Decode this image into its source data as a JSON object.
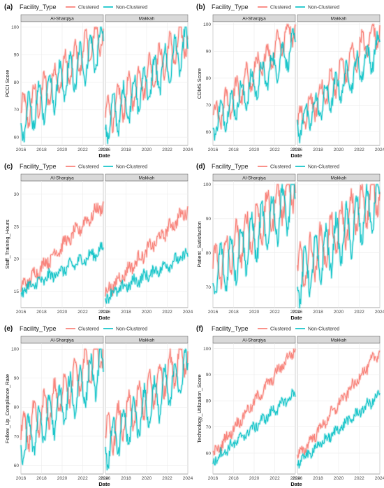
{
  "legend": {
    "title": "Facility_Type",
    "clustered_label": "Clustered",
    "non_clustered_label": "Non-Clustered"
  },
  "colors": {
    "clustered": "#f8766d",
    "non_clustered": "#00bfc4",
    "strip_bg": "#d9d9d9",
    "grid": "#ebebeb"
  },
  "facets": [
    "Al-Sharqiya",
    "Makkah"
  ],
  "chart_data": [
    {
      "panel": "(a)",
      "type": "line",
      "ylabel": "PCCI Score",
      "xlabel": "Date",
      "xlim": [
        2016,
        2024
      ],
      "xticks": [
        "2016",
        "2018",
        "2020",
        "2022",
        "2024"
      ],
      "ylim": [
        57,
        102
      ],
      "yticks": [
        60,
        70,
        80,
        90,
        100
      ],
      "series": [
        {
          "name": "Clustered",
          "start": 68,
          "end": 98,
          "amp": 6,
          "noise": 2.5,
          "cap": 100
        },
        {
          "name": "Non-Clustered",
          "start": 66,
          "end": 94,
          "amp": 7,
          "noise": 2.5,
          "cap": 100
        }
      ]
    },
    {
      "panel": "(b)",
      "type": "line",
      "ylabel": "CDMS Score",
      "xlabel": "Date",
      "xlim": [
        2016,
        2024
      ],
      "xticks": [
        "2016",
        "2018",
        "2020",
        "2022",
        "2024"
      ],
      "ylim": [
        55,
        101
      ],
      "yticks": [
        60,
        70,
        80,
        90,
        100
      ],
      "series": [
        {
          "name": "Clustered",
          "start": 64,
          "end": 100,
          "amp": 5,
          "noise": 2.5,
          "cap": 100
        },
        {
          "name": "Non-Clustered",
          "start": 63,
          "end": 92,
          "amp": 5,
          "noise": 2.5,
          "cap": 100
        }
      ]
    },
    {
      "panel": "(c)",
      "type": "line",
      "ylabel": "Staff_Training_Hours",
      "xlabel": "Date",
      "xlim": [
        2016,
        2024
      ],
      "xticks": [
        "2016",
        "2018",
        "2020",
        "2022",
        "2024"
      ],
      "ylim": [
        12.5,
        32
      ],
      "yticks": [
        15,
        20,
        25,
        30
      ],
      "series": [
        {
          "name": "Clustered",
          "start": 15.5,
          "end": 28.5,
          "amp": 0.6,
          "noise": 0.9,
          "cap": 40
        },
        {
          "name": "Non-Clustered",
          "start": 15,
          "end": 21.5,
          "amp": 0.5,
          "noise": 0.8,
          "cap": 40
        }
      ]
    },
    {
      "panel": "(d)",
      "type": "line",
      "ylabel": "Patient_Satisfaction",
      "xlabel": "Date",
      "xlim": [
        2016,
        2024
      ],
      "xticks": [
        "2016",
        "2018",
        "2020",
        "2022",
        "2024"
      ],
      "ylim": [
        64,
        101
      ],
      "yticks": [
        70,
        80,
        90,
        100
      ],
      "series": [
        {
          "name": "Clustered",
          "start": 75,
          "end": 100,
          "amp": 6,
          "noise": 2.5,
          "cap": 100
        },
        {
          "name": "Non-Clustered",
          "start": 73,
          "end": 96,
          "amp": 7,
          "noise": 2.5,
          "cap": 100
        }
      ]
    },
    {
      "panel": "(e)",
      "type": "line",
      "ylabel": "Follow_Up_Compliance_Rate",
      "xlabel": "Date",
      "xlim": [
        2016,
        2024
      ],
      "xticks": [
        "2016",
        "2018",
        "2020",
        "2022",
        "2024"
      ],
      "ylim": [
        57,
        102
      ],
      "yticks": [
        60,
        70,
        80,
        90,
        100
      ],
      "series": [
        {
          "name": "Clustered",
          "start": 70,
          "end": 100,
          "amp": 6,
          "noise": 2.5,
          "cap": 100
        },
        {
          "name": "Non-Clustered",
          "start": 67,
          "end": 94,
          "amp": 7,
          "noise": 2.5,
          "cap": 100
        }
      ]
    },
    {
      "panel": "(f)",
      "type": "line",
      "ylabel": "Technology_Utilization_Score",
      "xlabel": "Date",
      "xlim": [
        2016,
        2024
      ],
      "xticks": [
        "2016",
        "2018",
        "2020",
        "2022",
        "2024"
      ],
      "ylim": [
        52,
        102
      ],
      "yticks": [
        60,
        70,
        80,
        90,
        100
      ],
      "series": [
        {
          "name": "Clustered",
          "start": 59,
          "end": 100,
          "amp": 1.2,
          "noise": 1.8,
          "cap": 100
        },
        {
          "name": "Non-Clustered",
          "start": 57,
          "end": 83,
          "amp": 1,
          "noise": 1.8,
          "cap": 100
        }
      ]
    }
  ]
}
